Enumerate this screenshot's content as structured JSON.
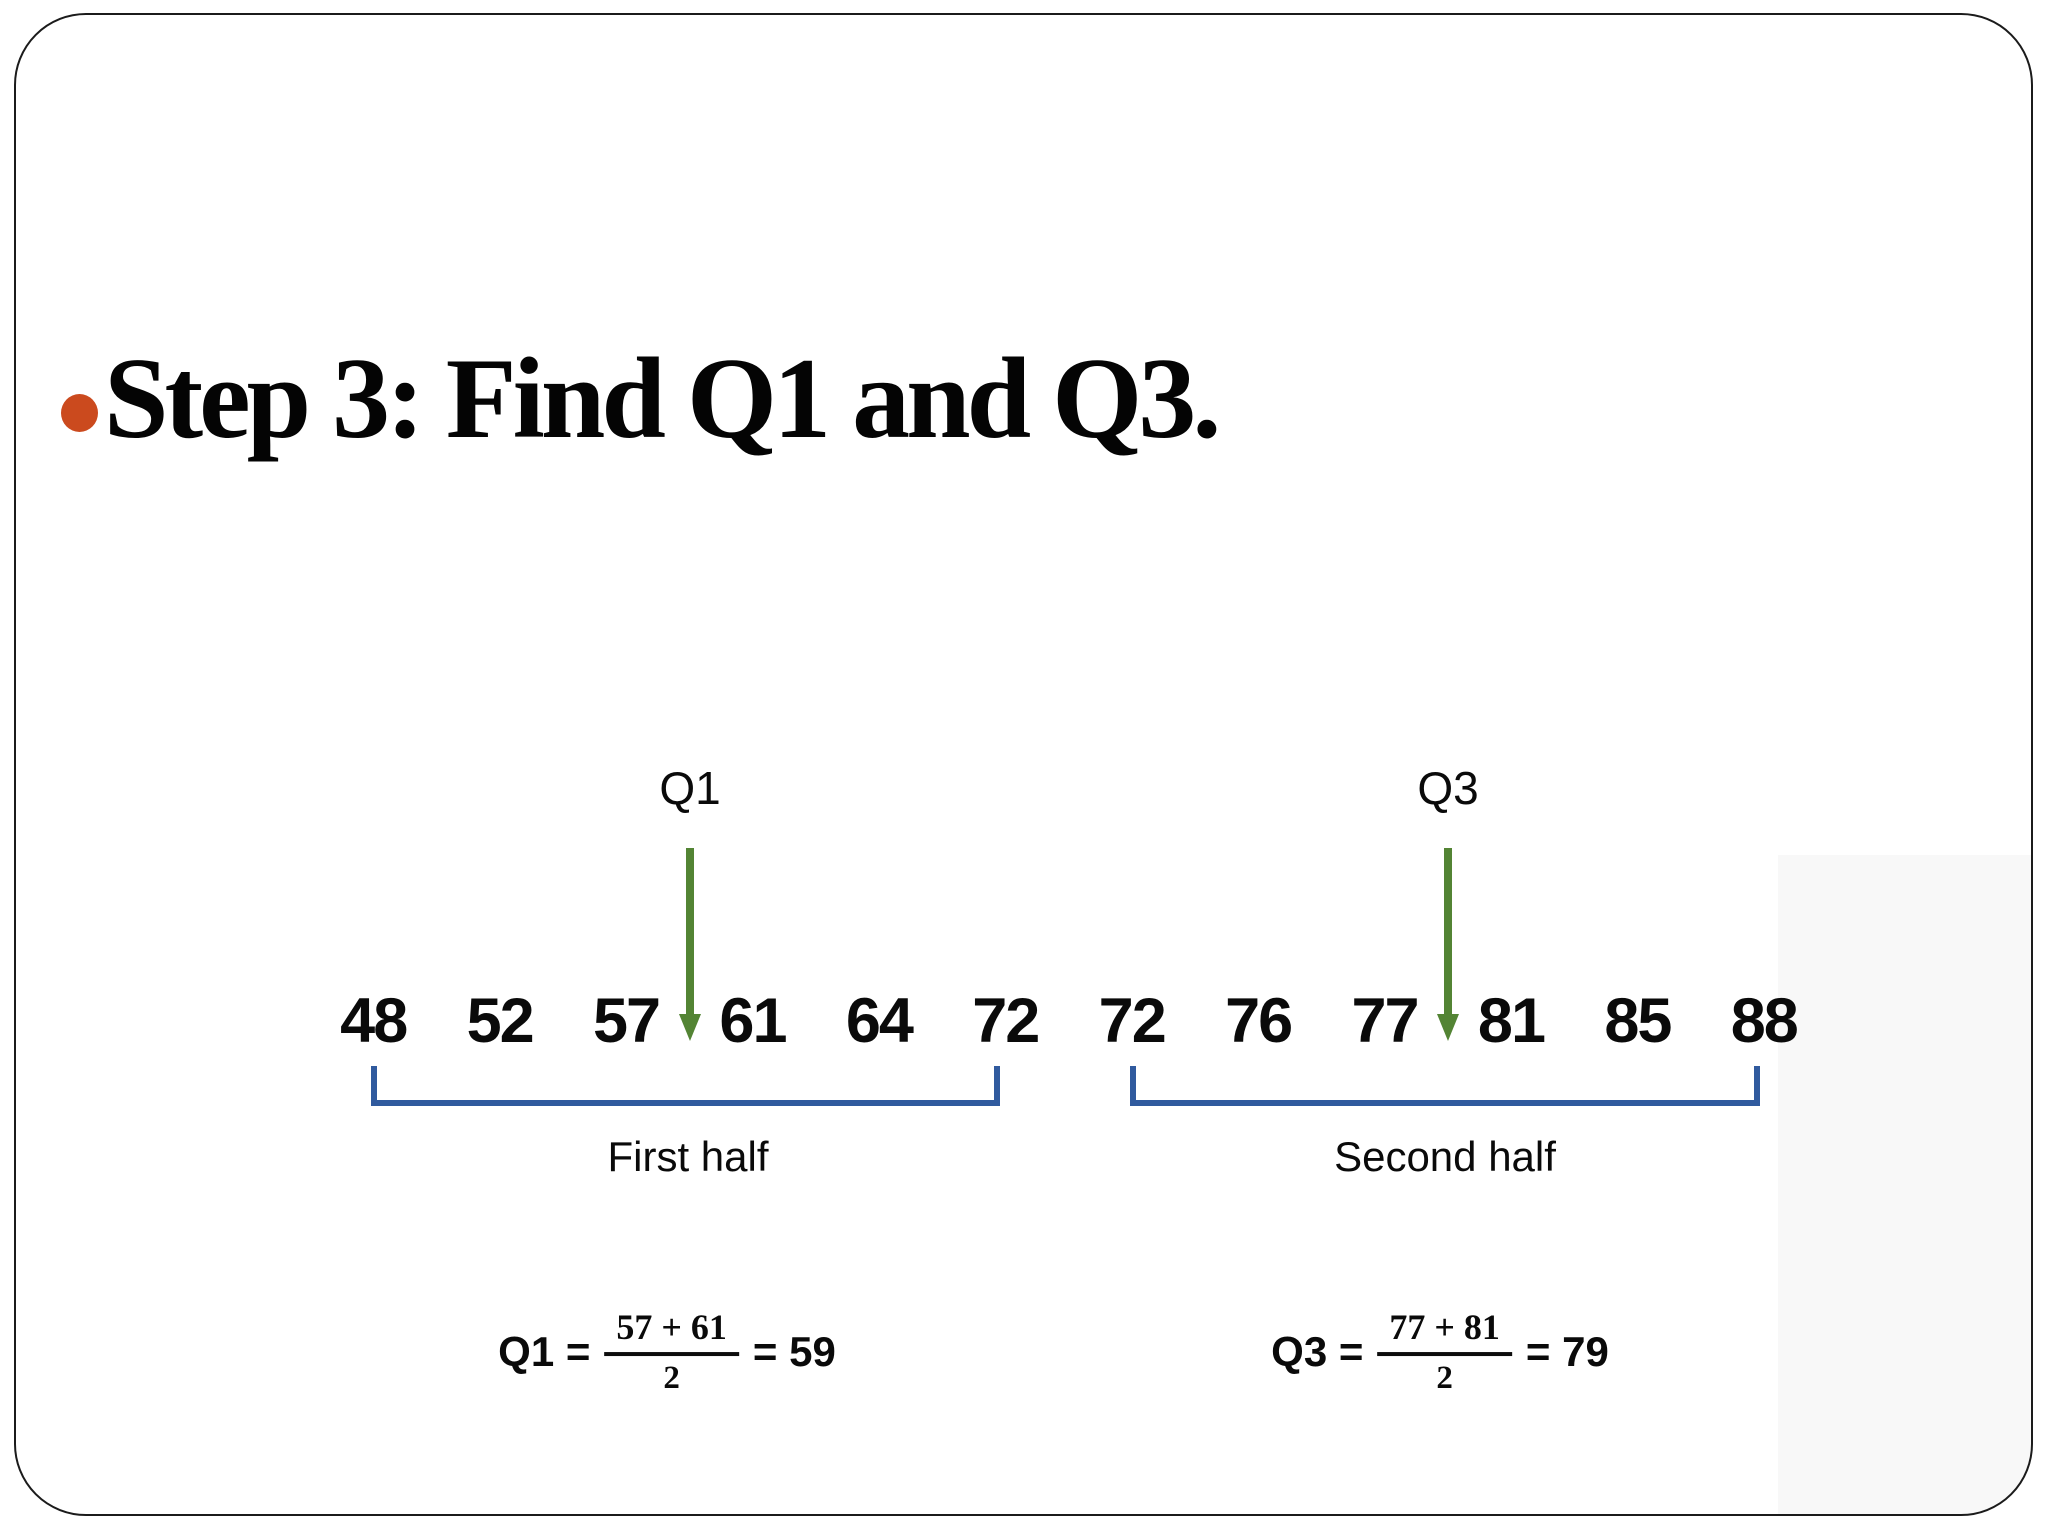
{
  "slide": {
    "title": "Step 3: Find Q1 and Q3.",
    "bullet_color": "#cb4a1e",
    "border_color": "#1b1b1b",
    "background_color": "#ffffff"
  },
  "diagram": {
    "q1_pointer_label": "Q1",
    "q3_pointer_label": "Q3",
    "arrow_color": "#538434",
    "bracket_color": "#305a9e",
    "numbers": [
      "48",
      "52",
      "57",
      "61",
      "64",
      "72",
      "72",
      "76",
      "77",
      "81",
      "85",
      "88"
    ],
    "first_half_label": "First half",
    "second_half_label": "Second half"
  },
  "formulas": {
    "q1": {
      "lhs": "Q1 =",
      "numerator": "57 + 61",
      "denominator": "2",
      "result": "= 59"
    },
    "q3": {
      "lhs": "Q3 =",
      "numerator": "77 + 81",
      "denominator": "2",
      "result": "= 79"
    }
  }
}
